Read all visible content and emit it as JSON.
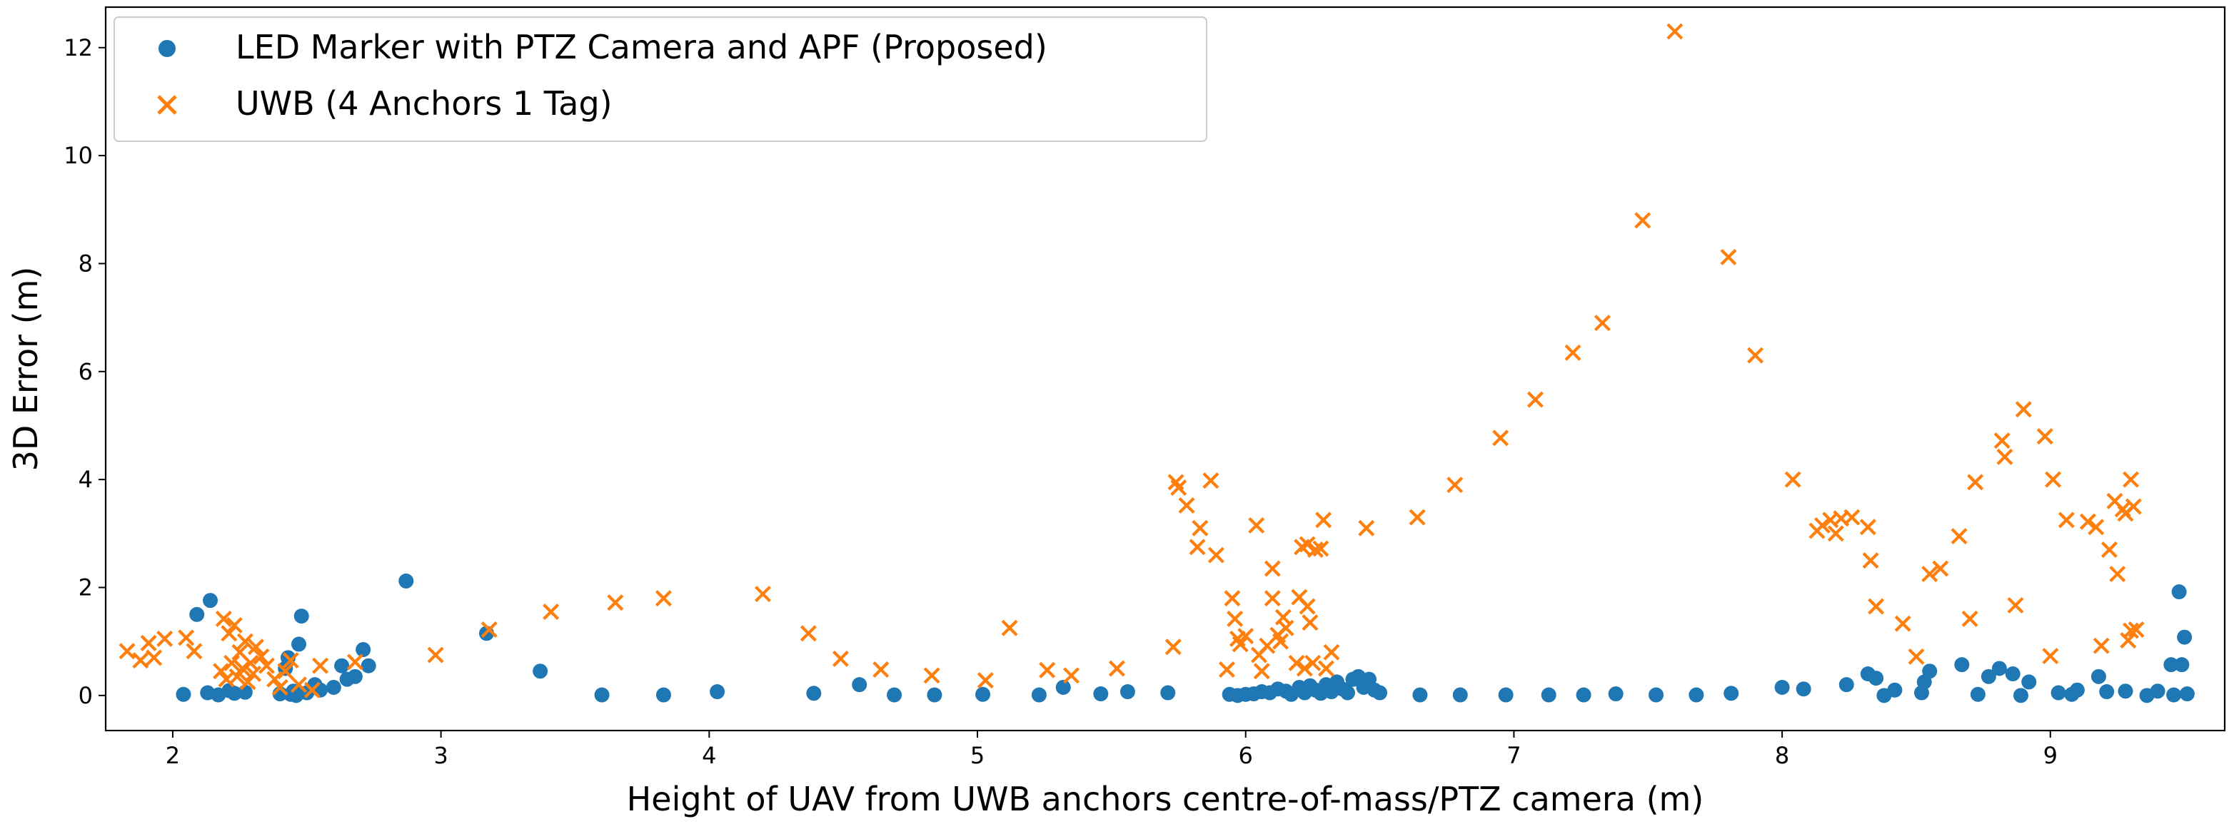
{
  "chart_data": {
    "type": "scatter",
    "xlabel": "Height of UAV from UWB anchors centre-of-mass/PTZ camera (m)",
    "ylabel": "3D Error (m)",
    "xlim": [
      1.75,
      9.65
    ],
    "ylim": [
      -0.65,
      12.75
    ],
    "x_ticks": [
      2,
      3,
      4,
      5,
      6,
      7,
      8,
      9
    ],
    "y_ticks": [
      0,
      2,
      4,
      6,
      8,
      10,
      12
    ],
    "grid": false,
    "legend_position": "upper-left",
    "series": [
      {
        "name": "LED Marker with PTZ Camera and APF (Proposed)",
        "marker": "circle",
        "color": "#1f77b4",
        "points": [
          [
            2.04,
            0.02
          ],
          [
            2.09,
            1.5
          ],
          [
            2.13,
            0.05
          ],
          [
            2.14,
            1.76
          ],
          [
            2.17,
            0.01
          ],
          [
            2.21,
            0.09
          ],
          [
            2.23,
            0.04
          ],
          [
            2.27,
            0.06
          ],
          [
            2.4,
            0.03
          ],
          [
            2.42,
            0.5
          ],
          [
            2.43,
            0.7
          ],
          [
            2.44,
            0.02
          ],
          [
            2.45,
            0.08
          ],
          [
            2.46,
            0.0
          ],
          [
            2.47,
            0.95
          ],
          [
            2.48,
            1.47
          ],
          [
            2.5,
            0.05
          ],
          [
            2.53,
            0.2
          ],
          [
            2.55,
            0.1
          ],
          [
            2.6,
            0.15
          ],
          [
            2.63,
            0.55
          ],
          [
            2.65,
            0.3
          ],
          [
            2.68,
            0.35
          ],
          [
            2.71,
            0.85
          ],
          [
            2.73,
            0.55
          ],
          [
            2.87,
            2.12
          ],
          [
            3.17,
            1.15
          ],
          [
            3.37,
            0.45
          ],
          [
            3.6,
            0.01
          ],
          [
            3.83,
            0.01
          ],
          [
            4.03,
            0.07
          ],
          [
            4.39,
            0.04
          ],
          [
            4.56,
            0.2
          ],
          [
            4.69,
            0.01
          ],
          [
            4.84,
            0.01
          ],
          [
            5.02,
            0.02
          ],
          [
            5.23,
            0.01
          ],
          [
            5.32,
            0.15
          ],
          [
            5.46,
            0.03
          ],
          [
            5.56,
            0.07
          ],
          [
            5.71,
            0.05
          ],
          [
            5.94,
            0.02
          ],
          [
            5.97,
            0.0
          ],
          [
            6.0,
            0.02
          ],
          [
            6.03,
            0.03
          ],
          [
            6.06,
            0.07
          ],
          [
            6.09,
            0.05
          ],
          [
            6.12,
            0.12
          ],
          [
            6.15,
            0.08
          ],
          [
            6.17,
            0.02
          ],
          [
            6.2,
            0.15
          ],
          [
            6.22,
            0.05
          ],
          [
            6.24,
            0.18
          ],
          [
            6.26,
            0.1
          ],
          [
            6.28,
            0.04
          ],
          [
            6.3,
            0.2
          ],
          [
            6.32,
            0.07
          ],
          [
            6.34,
            0.25
          ],
          [
            6.36,
            0.12
          ],
          [
            6.38,
            0.05
          ],
          [
            6.4,
            0.3
          ],
          [
            6.42,
            0.35
          ],
          [
            6.44,
            0.15
          ],
          [
            6.46,
            0.3
          ],
          [
            6.48,
            0.1
          ],
          [
            6.5,
            0.05
          ],
          [
            6.65,
            0.01
          ],
          [
            6.8,
            0.01
          ],
          [
            6.97,
            0.01
          ],
          [
            7.13,
            0.01
          ],
          [
            7.26,
            0.01
          ],
          [
            7.38,
            0.03
          ],
          [
            7.53,
            0.01
          ],
          [
            7.68,
            0.01
          ],
          [
            7.81,
            0.04
          ],
          [
            8.0,
            0.15
          ],
          [
            8.08,
            0.12
          ],
          [
            8.24,
            0.2
          ],
          [
            8.32,
            0.4
          ],
          [
            8.35,
            0.32
          ],
          [
            8.38,
            0.0
          ],
          [
            8.42,
            0.1
          ],
          [
            8.52,
            0.05
          ],
          [
            8.53,
            0.25
          ],
          [
            8.55,
            0.45
          ],
          [
            8.67,
            0.57
          ],
          [
            8.73,
            0.02
          ],
          [
            8.77,
            0.35
          ],
          [
            8.81,
            0.5
          ],
          [
            8.86,
            0.4
          ],
          [
            8.89,
            0.0
          ],
          [
            8.92,
            0.25
          ],
          [
            9.03,
            0.05
          ],
          [
            9.08,
            0.02
          ],
          [
            9.1,
            0.1
          ],
          [
            9.18,
            0.35
          ],
          [
            9.21,
            0.07
          ],
          [
            9.28,
            0.08
          ],
          [
            9.36,
            0.0
          ],
          [
            9.4,
            0.08
          ],
          [
            9.45,
            0.57
          ],
          [
            9.46,
            0.01
          ],
          [
            9.48,
            1.92
          ],
          [
            9.49,
            0.57
          ],
          [
            9.5,
            1.08
          ],
          [
            9.51,
            0.03
          ]
        ]
      },
      {
        "name": "UWB (4 Anchors 1 Tag)",
        "marker": "x",
        "color": "#ff7f0e",
        "points": [
          [
            1.83,
            0.82
          ],
          [
            1.88,
            0.65
          ],
          [
            1.91,
            0.97
          ],
          [
            1.93,
            0.7
          ],
          [
            1.97,
            1.05
          ],
          [
            2.05,
            1.07
          ],
          [
            2.08,
            0.82
          ],
          [
            2.18,
            0.45
          ],
          [
            2.19,
            1.42
          ],
          [
            2.2,
            0.3
          ],
          [
            2.21,
            1.15
          ],
          [
            2.22,
            0.6
          ],
          [
            2.23,
            1.3
          ],
          [
            2.24,
            0.35
          ],
          [
            2.25,
            0.8
          ],
          [
            2.26,
            0.5
          ],
          [
            2.27,
            1.0
          ],
          [
            2.28,
            0.25
          ],
          [
            2.29,
            0.6
          ],
          [
            2.3,
            0.4
          ],
          [
            2.31,
            0.9
          ],
          [
            2.33,
            0.72
          ],
          [
            2.35,
            0.55
          ],
          [
            2.38,
            0.3
          ],
          [
            2.4,
            0.15
          ],
          [
            2.42,
            0.45
          ],
          [
            2.44,
            0.65
          ],
          [
            2.47,
            0.2
          ],
          [
            2.52,
            0.1
          ],
          [
            2.55,
            0.55
          ],
          [
            2.68,
            0.62
          ],
          [
            2.98,
            0.75
          ],
          [
            3.18,
            1.22
          ],
          [
            3.41,
            1.55
          ],
          [
            3.65,
            1.72
          ],
          [
            3.83,
            1.8
          ],
          [
            4.2,
            1.88
          ],
          [
            4.37,
            1.15
          ],
          [
            4.49,
            0.68
          ],
          [
            4.64,
            0.48
          ],
          [
            4.83,
            0.37
          ],
          [
            5.03,
            0.28
          ],
          [
            5.12,
            1.25
          ],
          [
            5.26,
            0.47
          ],
          [
            5.35,
            0.37
          ],
          [
            5.52,
            0.5
          ],
          [
            5.73,
            0.9
          ],
          [
            5.74,
            3.95
          ],
          [
            5.75,
            3.85
          ],
          [
            5.78,
            3.52
          ],
          [
            5.82,
            2.75
          ],
          [
            5.83,
            3.1
          ],
          [
            5.87,
            3.98
          ],
          [
            5.89,
            2.6
          ],
          [
            5.93,
            0.48
          ],
          [
            5.95,
            1.8
          ],
          [
            5.96,
            1.42
          ],
          [
            5.97,
            1.05
          ],
          [
            5.98,
            0.95
          ],
          [
            6.0,
            1.1
          ],
          [
            6.04,
            3.15
          ],
          [
            6.05,
            0.75
          ],
          [
            6.06,
            0.45
          ],
          [
            6.08,
            0.92
          ],
          [
            6.1,
            2.35
          ],
          [
            6.1,
            1.8
          ],
          [
            6.12,
            1.12
          ],
          [
            6.13,
            1.0
          ],
          [
            6.14,
            1.45
          ],
          [
            6.15,
            1.25
          ],
          [
            6.19,
            0.6
          ],
          [
            6.2,
            1.82
          ],
          [
            6.21,
            2.75
          ],
          [
            6.22,
            0.5
          ],
          [
            6.23,
            1.65
          ],
          [
            6.23,
            2.8
          ],
          [
            6.24,
            1.35
          ],
          [
            6.25,
            0.6
          ],
          [
            6.26,
            2.7
          ],
          [
            6.28,
            2.72
          ],
          [
            6.29,
            3.25
          ],
          [
            6.3,
            0.5
          ],
          [
            6.32,
            0.8
          ],
          [
            6.45,
            3.1
          ],
          [
            6.64,
            3.3
          ],
          [
            6.78,
            3.9
          ],
          [
            6.95,
            4.77
          ],
          [
            7.08,
            5.48
          ],
          [
            7.22,
            6.35
          ],
          [
            7.33,
            6.9
          ],
          [
            7.48,
            8.8
          ],
          [
            7.6,
            12.3
          ],
          [
            7.8,
            8.12
          ],
          [
            7.9,
            6.3
          ],
          [
            8.04,
            4.0
          ],
          [
            8.13,
            3.05
          ],
          [
            8.15,
            3.15
          ],
          [
            8.18,
            3.25
          ],
          [
            8.2,
            3.0
          ],
          [
            8.22,
            3.28
          ],
          [
            8.26,
            3.3
          ],
          [
            8.32,
            3.12
          ],
          [
            8.33,
            2.5
          ],
          [
            8.35,
            1.65
          ],
          [
            8.45,
            1.33
          ],
          [
            8.5,
            0.72
          ],
          [
            8.55,
            2.25
          ],
          [
            8.59,
            2.35
          ],
          [
            8.66,
            2.95
          ],
          [
            8.7,
            1.42
          ],
          [
            8.72,
            3.95
          ],
          [
            8.82,
            4.72
          ],
          [
            8.83,
            4.42
          ],
          [
            8.87,
            1.67
          ],
          [
            8.9,
            5.3
          ],
          [
            8.98,
            4.8
          ],
          [
            9.0,
            0.73
          ],
          [
            9.01,
            4.0
          ],
          [
            9.06,
            3.25
          ],
          [
            9.14,
            3.22
          ],
          [
            9.17,
            3.12
          ],
          [
            9.19,
            0.92
          ],
          [
            9.22,
            2.7
          ],
          [
            9.24,
            3.6
          ],
          [
            9.25,
            2.25
          ],
          [
            9.27,
            3.45
          ],
          [
            9.28,
            3.37
          ],
          [
            9.29,
            1.02
          ],
          [
            9.3,
            1.2
          ],
          [
            9.3,
            4.0
          ],
          [
            9.31,
            3.5
          ],
          [
            9.32,
            1.22
          ]
        ]
      }
    ]
  }
}
